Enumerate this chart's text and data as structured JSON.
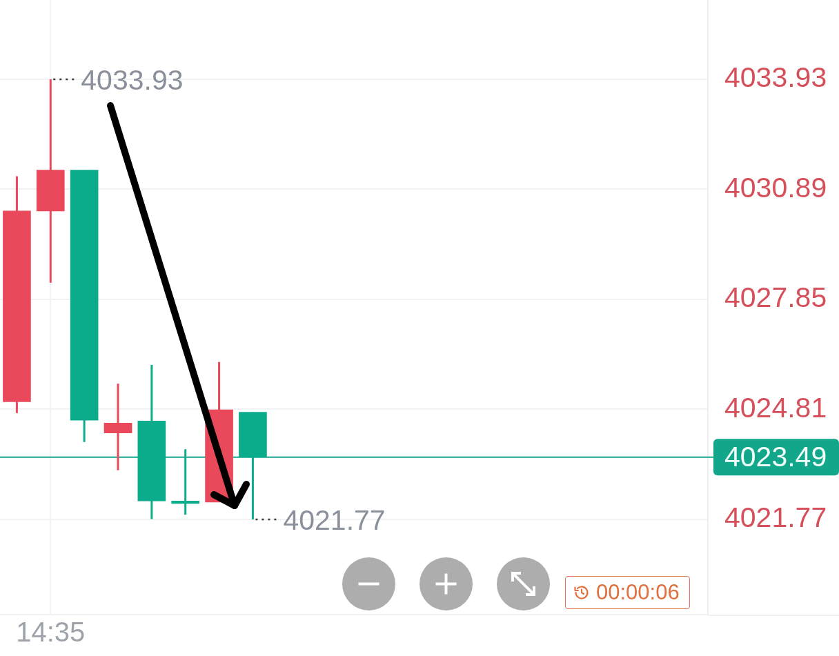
{
  "chart_data": {
    "type": "candlestick",
    "categories": [
      null,
      "14:35",
      null,
      null,
      null,
      null,
      null,
      null,
      null,
      null,
      null,
      null,
      null,
      null,
      null,
      null,
      null,
      null,
      null,
      null,
      null
    ],
    "ohlc": [
      [
        4025.02,
        4031.25,
        4024.71,
        4030.29
      ],
      [
        4030.29,
        4033.93,
        4028.31,
        4031.42
      ],
      [
        4031.42,
        4031.42,
        4023.91,
        4024.51
      ],
      [
        4024.16,
        4025.52,
        4023.13,
        4024.43
      ],
      [
        4024.49,
        4026.04,
        4021.78,
        4022.28
      ],
      [
        4022.28,
        4023.71,
        4021.9,
        4022.21
      ],
      [
        4022.25,
        4026.12,
        4022.25,
        4024.8
      ],
      [
        4024.73,
        4024.73,
        4021.77,
        4023.49
      ],
      null,
      null,
      null,
      null,
      null,
      null,
      null,
      null,
      null,
      null,
      null,
      null,
      null
    ],
    "colors": [
      "#e9495a",
      "#e9495a",
      "#0aac8c",
      "#e9495a",
      "#0aac8c",
      "#0aac8c",
      "#e9495a",
      "#0aac8c",
      null,
      null,
      null,
      null,
      null,
      null,
      null,
      null,
      null,
      null,
      null,
      null,
      null
    ],
    "ylim": [
      4019.14,
      4036.12
    ],
    "yticks": [
      4021.77,
      4024.81,
      4027.85,
      4030.89,
      4033.93
    ],
    "grid": true,
    "ref_lines": [
      {
        "axis": "y",
        "value": 4023.49,
        "label": "4023.49",
        "color": "#12a68a"
      }
    ],
    "annotations": [
      {
        "text": "4033.93",
        "x": "14:35",
        "y": 4033.93
      },
      "4021.77",
      "00:00:06"
    ]
  }
}
